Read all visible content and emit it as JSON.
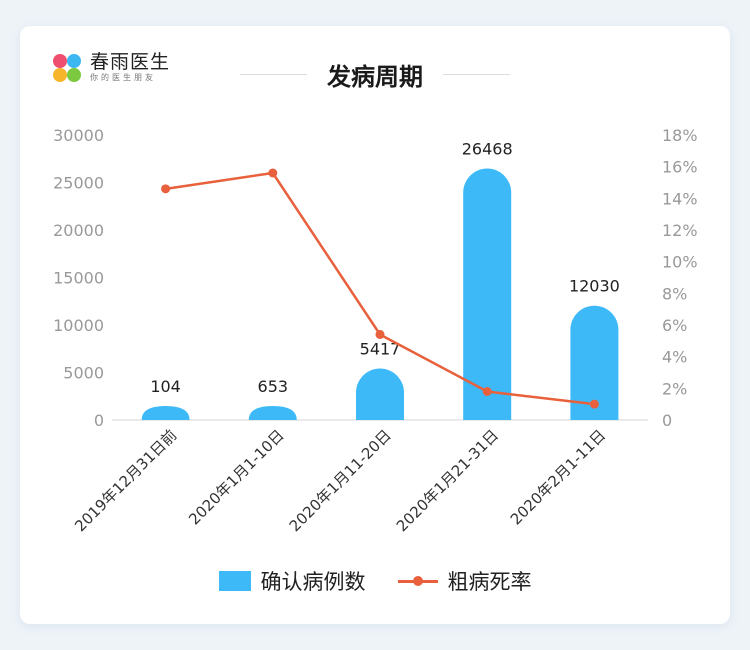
{
  "brand": {
    "name": "春雨医生",
    "tagline": "你的医生朋友",
    "colors": [
      "#f04e6e",
      "#3db7f2",
      "#f7b52c",
      "#7cc93f"
    ]
  },
  "chart_data": {
    "type": "bar",
    "title": "发病周期",
    "categories": [
      "2019年12月31日前",
      "2020年1月1-10日",
      "2020年1月11-20日",
      "2020年1月21-31日",
      "2020年2月1-11日"
    ],
    "series": [
      {
        "name": "确认病例数",
        "type": "bar",
        "axis": "left",
        "color": "#3db9f8",
        "values": [
          104,
          653,
          5417,
          26468,
          12030
        ],
        "data_labels": [
          "104",
          "653",
          "5417",
          "26468",
          "12030"
        ]
      },
      {
        "name": "粗病死率",
        "type": "line",
        "axis": "right",
        "color": "#e8603c",
        "values": [
          14.6,
          15.6,
          5.4,
          1.8,
          1.0
        ]
      }
    ],
    "y_left": {
      "min": 0,
      "max": 30000,
      "ticks": [
        "0",
        "5000",
        "10000",
        "15000",
        "20000",
        "25000",
        "30000"
      ],
      "tick_values": [
        0,
        5000,
        10000,
        15000,
        20000,
        25000,
        30000
      ]
    },
    "y_right": {
      "min": 0,
      "max": 18,
      "ticks": [
        "0",
        "2%",
        "4%",
        "6%",
        "8%",
        "10%",
        "12%",
        "14%",
        "16%",
        "18%"
      ],
      "tick_values": [
        0,
        2,
        4,
        6,
        8,
        10,
        12,
        14,
        16,
        18
      ]
    },
    "grid": false,
    "legend_position": "bottom"
  }
}
